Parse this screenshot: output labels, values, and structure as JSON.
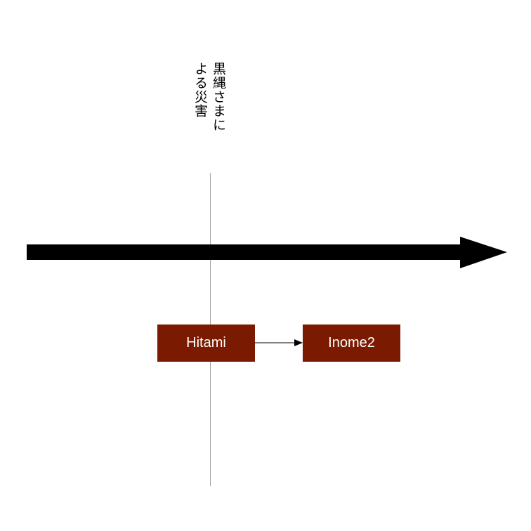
{
  "event": {
    "label": "黒縄さまに\nよる災害"
  },
  "nodes": [
    {
      "id": "hitami",
      "label": "Hitami",
      "color": "#7a1a00"
    },
    {
      "id": "inome2",
      "label": "Inome2",
      "color": "#7a1a00"
    }
  ],
  "edges": [
    {
      "from": "Hitami",
      "to": "Inome2"
    }
  ],
  "colors": {
    "timeline": "#000000",
    "marker_line": "#a0a0a0",
    "node_fill": "#7a1a00",
    "node_text": "#ffffff"
  }
}
